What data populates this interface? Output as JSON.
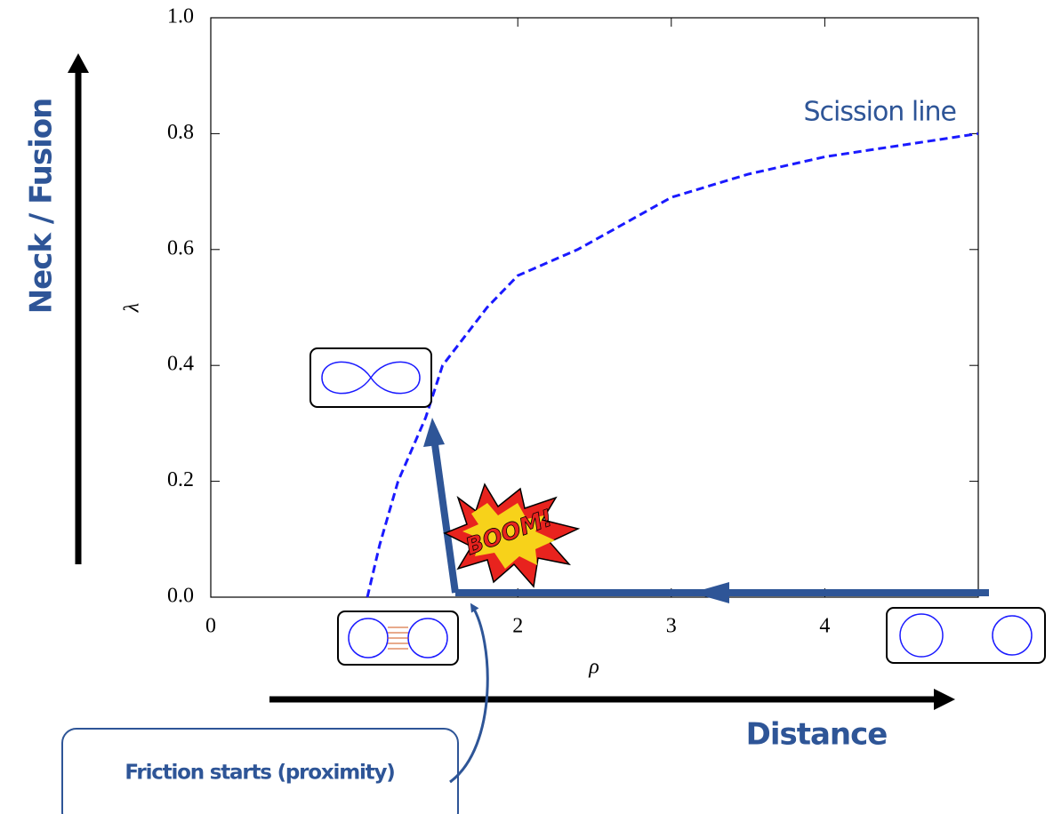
{
  "chart_data": {
    "type": "line",
    "xlabel": "ρ",
    "ylabel": "λ",
    "xlim": [
      0,
      5
    ],
    "ylim": [
      0,
      1
    ],
    "xticks": [
      0,
      2,
      3,
      4
    ],
    "yticks": [
      {
        "value": 0,
        "label": "0.0"
      },
      {
        "value": 0.2,
        "label": "0.2"
      },
      {
        "value": 0.4,
        "label": "0.4"
      },
      {
        "value": 0.6,
        "label": "0.6"
      },
      {
        "value": 0.8,
        "label": "0.8"
      },
      {
        "value": 1,
        "label": "1.0"
      }
    ],
    "series": [
      {
        "name": "Scission line",
        "color": "#1a1aff",
        "x": [
          1.02,
          1.1,
          1.22,
          1.4,
          1.51,
          1.8,
          2.0,
          2.39,
          3.0,
          3.5,
          4.0,
          4.5,
          5.0
        ],
        "values": [
          0,
          0.09,
          0.2,
          0.31,
          0.4,
          0.5,
          0.555,
          0.6,
          0.69,
          0.73,
          0.76,
          0.78,
          0.8
        ]
      }
    ],
    "annotations": [
      "Neck / Fusion",
      "Distance",
      "Friction starts (proximity)",
      "BOOM!"
    ]
  }
}
